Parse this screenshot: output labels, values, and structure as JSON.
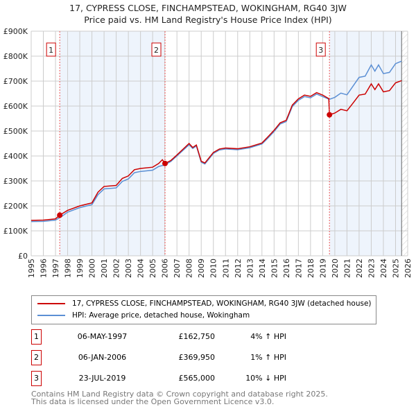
{
  "chart_data": {
    "type": "line",
    "title": "17, CYPRESS CLOSE, FINCHAMPSTEAD, WOKINGHAM, RG40 3JW",
    "subtitle": "Price paid vs. HM Land Registry's House Price Index (HPI)",
    "xlim": [
      1995,
      2026
    ],
    "ylim": [
      0,
      900000
    ],
    "y_ticks": [
      {
        "v": 0,
        "label": "£0"
      },
      {
        "v": 100000,
        "label": "£100K"
      },
      {
        "v": 200000,
        "label": "£200K"
      },
      {
        "v": 300000,
        "label": "£300K"
      },
      {
        "v": 400000,
        "label": "£400K"
      },
      {
        "v": 500000,
        "label": "£500K"
      },
      {
        "v": 600000,
        "label": "£600K"
      },
      {
        "v": 700000,
        "label": "£700K"
      },
      {
        "v": 800000,
        "label": "£800K"
      },
      {
        "v": 900000,
        "label": "£900K"
      }
    ],
    "x_ticks": [
      "1995",
      "1996",
      "1997",
      "1998",
      "1999",
      "2000",
      "2001",
      "2002",
      "2003",
      "2004",
      "2005",
      "2006",
      "2007",
      "2008",
      "2009",
      "2010",
      "2011",
      "2012",
      "2013",
      "2014",
      "2015",
      "2016",
      "2017",
      "2018",
      "2019",
      "2020",
      "2021",
      "2022",
      "2023",
      "2024",
      "2025",
      "2026"
    ],
    "grid": true,
    "series": [
      {
        "name": "HPI: Average price, detached house, Wokingham",
        "color": "#5b8fd4",
        "points": [
          [
            1995,
            137
          ],
          [
            1996,
            138
          ],
          [
            1997,
            143
          ],
          [
            1997.4,
            154
          ],
          [
            1998,
            175
          ],
          [
            1999,
            193
          ],
          [
            2000,
            205
          ],
          [
            2000.5,
            245
          ],
          [
            2001,
            268
          ],
          [
            2002,
            272
          ],
          [
            2002.5,
            298
          ],
          [
            2003,
            308
          ],
          [
            2003.5,
            333
          ],
          [
            2004,
            338
          ],
          [
            2005,
            343
          ],
          [
            2005.5,
            358
          ],
          [
            2006,
            364
          ],
          [
            2006.5,
            378
          ],
          [
            2007,
            400
          ],
          [
            2008,
            445
          ],
          [
            2008.3,
            430
          ],
          [
            2008.6,
            440
          ],
          [
            2009,
            375
          ],
          [
            2009.3,
            368
          ],
          [
            2010,
            410
          ],
          [
            2010.5,
            424
          ],
          [
            2011,
            428
          ],
          [
            2012,
            425
          ],
          [
            2013,
            433
          ],
          [
            2014,
            448
          ],
          [
            2014.5,
            472
          ],
          [
            2015,
            498
          ],
          [
            2015.5,
            528
          ],
          [
            2016,
            538
          ],
          [
            2016.5,
            598
          ],
          [
            2017,
            623
          ],
          [
            2017.5,
            638
          ],
          [
            2018,
            633
          ],
          [
            2018.5,
            648
          ],
          [
            2019,
            638
          ],
          [
            2019.55,
            627
          ],
          [
            2020,
            635
          ],
          [
            2020.5,
            652
          ],
          [
            2021,
            645
          ],
          [
            2021.5,
            680
          ],
          [
            2022,
            715
          ],
          [
            2022.5,
            720
          ],
          [
            2023,
            765
          ],
          [
            2023.3,
            740
          ],
          [
            2023.6,
            765
          ],
          [
            2024,
            730
          ],
          [
            2024.5,
            735
          ],
          [
            2025,
            770
          ],
          [
            2025.5,
            780
          ]
        ]
      },
      {
        "name": "17, CYPRESS CLOSE, FINCHAMPSTEAD, WOKINGHAM, RG40 3JW (detached house)",
        "color": "#cc0000",
        "points": [
          [
            1995,
            142
          ],
          [
            1996,
            143
          ],
          [
            1997,
            148
          ],
          [
            1997.35,
            162.75
          ],
          [
            1998,
            182
          ],
          [
            1999,
            200
          ],
          [
            2000,
            212
          ],
          [
            2000.5,
            255
          ],
          [
            2001,
            278
          ],
          [
            2002,
            282
          ],
          [
            2002.5,
            310
          ],
          [
            2003,
            320
          ],
          [
            2003.5,
            345
          ],
          [
            2004,
            350
          ],
          [
            2005,
            355
          ],
          [
            2005.5,
            370
          ],
          [
            2005.8,
            385
          ],
          [
            2006.02,
            369.95
          ],
          [
            2006.5,
            382
          ],
          [
            2007,
            404
          ],
          [
            2008,
            450
          ],
          [
            2008.3,
            434
          ],
          [
            2008.6,
            444
          ],
          [
            2009,
            379
          ],
          [
            2009.3,
            372
          ],
          [
            2010,
            414
          ],
          [
            2010.5,
            428
          ],
          [
            2011,
            432
          ],
          [
            2012,
            429
          ],
          [
            2013,
            437
          ],
          [
            2014,
            452
          ],
          [
            2014.5,
            477
          ],
          [
            2015,
            503
          ],
          [
            2015.5,
            533
          ],
          [
            2016,
            543
          ],
          [
            2016.5,
            604
          ],
          [
            2017,
            629
          ],
          [
            2017.5,
            644
          ],
          [
            2018,
            639
          ],
          [
            2018.5,
            654
          ],
          [
            2019,
            644
          ],
          [
            2019.5,
            630
          ],
          [
            2019.56,
            565
          ],
          [
            2020,
            572
          ],
          [
            2020.5,
            587
          ],
          [
            2021,
            581
          ],
          [
            2021.5,
            612
          ],
          [
            2022,
            644
          ],
          [
            2022.5,
            648
          ],
          [
            2023,
            689
          ],
          [
            2023.3,
            666
          ],
          [
            2023.6,
            689
          ],
          [
            2024,
            657
          ],
          [
            2024.5,
            662
          ],
          [
            2025,
            693
          ],
          [
            2025.5,
            702
          ]
        ]
      }
    ],
    "sales": [
      {
        "n": "1",
        "x": 1997.35,
        "price": 162750,
        "date": "06-MAY-1997",
        "price_label": "£162,750",
        "hpi": "4% ↑ HPI"
      },
      {
        "n": "2",
        "x": 2006.02,
        "price": 369950,
        "date": "06-JAN-2006",
        "price_label": "£369,950",
        "hpi": "1% ↑ HPI"
      },
      {
        "n": "3",
        "x": 2019.56,
        "price": 565000,
        "date": "23-JUL-2019",
        "price_label": "£565,000",
        "hpi": "10% ↓ HPI"
      }
    ],
    "forecast_start": 2025.5
  },
  "footer": [
    "Contains HM Land Registry data © Crown copyright and database right 2025.",
    "This data is licensed under the Open Government Licence v3.0."
  ]
}
